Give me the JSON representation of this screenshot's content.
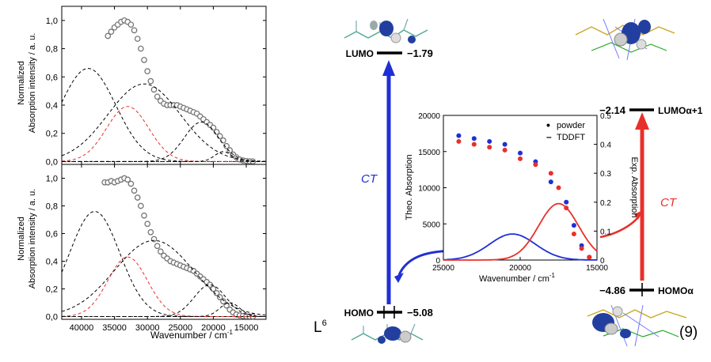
{
  "colors": {
    "blue": "#1f2fd6",
    "red": "#e8302a",
    "black": "#000000",
    "gray": "#777777"
  },
  "chart_data": [
    {
      "type": "line",
      "panel": "top",
      "ylabel_line1": "Normalized",
      "ylabel_line2": "Absorption intensity / a. u.",
      "xlim": [
        43000,
        12000
      ],
      "ylim": [
        -0.02,
        1.1
      ],
      "yticks": [
        "0,0",
        "0,2",
        "0,4",
        "0,6",
        "0,8",
        "1,0"
      ],
      "xticks": [
        "40000",
        "35000",
        "30000",
        "25000",
        "20000",
        "15000"
      ],
      "series": [
        {
          "style": "measured-circles",
          "color": "#777777",
          "x": [
            36000,
            35500,
            35000,
            34500,
            34000,
            33500,
            33000,
            32500,
            32000,
            31500,
            31000,
            30500,
            30000,
            29500,
            29000,
            28500,
            28000,
            27500,
            27000,
            26500,
            26000,
            25500,
            25000,
            24500,
            24000,
            23500,
            23000,
            22500,
            22000,
            21500,
            21000,
            20500,
            20000,
            19500,
            19000,
            18500,
            18000,
            17500,
            17000,
            16500,
            16000,
            15500,
            15000,
            14500,
            14000
          ],
          "y": [
            0.89,
            0.92,
            0.95,
            0.97,
            0.99,
            1.0,
            0.99,
            0.97,
            0.93,
            0.87,
            0.8,
            0.72,
            0.64,
            0.57,
            0.51,
            0.46,
            0.43,
            0.41,
            0.4,
            0.4,
            0.4,
            0.4,
            0.39,
            0.38,
            0.37,
            0.36,
            0.35,
            0.34,
            0.32,
            0.3,
            0.28,
            0.26,
            0.24,
            0.21,
            0.18,
            0.15,
            0.11,
            0.08,
            0.05,
            0.03,
            0.015,
            0.008,
            0.004,
            0.002,
            0.001
          ]
        },
        {
          "style": "gauss-black",
          "center": 39000,
          "amp": 0.66,
          "width": 4200
        },
        {
          "style": "gauss-black",
          "center": 30500,
          "amp": 0.55,
          "width": 5500
        },
        {
          "style": "gauss-red",
          "center": 33000,
          "amp": 0.39,
          "width": 3200
        },
        {
          "style": "gauss-black",
          "center": 21800,
          "amp": 0.28,
          "width": 2600
        },
        {
          "style": "gauss-black",
          "center": 18500,
          "amp": 0.07,
          "width": 1300
        }
      ]
    },
    {
      "type": "line",
      "panel": "bottom",
      "xlabel": "Wavenumber / cm",
      "xlabel_sup": "-1",
      "ylabel_line1": "Normalized",
      "ylabel_line2": "Absorption intensity / a. u.",
      "xlim": [
        43000,
        12000
      ],
      "ylim": [
        -0.02,
        1.1
      ],
      "yticks": [
        "0,0",
        "0,2",
        "0,4",
        "0,6",
        "0,8",
        "1,0"
      ],
      "xticks": [
        "40000",
        "35000",
        "30000",
        "25000",
        "20000",
        "15000"
      ],
      "series": [
        {
          "style": "measured-circles",
          "color": "#777777",
          "x": [
            36500,
            36000,
            35500,
            35000,
            34500,
            34000,
            33500,
            33000,
            32500,
            32000,
            31500,
            31000,
            30500,
            30000,
            29500,
            29000,
            28500,
            28000,
            27500,
            27000,
            26500,
            26000,
            25500,
            25000,
            24500,
            24000,
            23500,
            23000,
            22500,
            22000,
            21500,
            21000,
            20500,
            20000,
            19500,
            19000,
            18500,
            18000,
            17500,
            17000,
            16500,
            16000,
            15500,
            15000,
            14500,
            14000
          ],
          "y": [
            0.97,
            0.97,
            0.98,
            0.97,
            0.98,
            0.99,
            1.0,
            0.99,
            0.96,
            0.91,
            0.86,
            0.8,
            0.73,
            0.67,
            0.61,
            0.56,
            0.51,
            0.47,
            0.44,
            0.42,
            0.4,
            0.39,
            0.38,
            0.37,
            0.36,
            0.35,
            0.34,
            0.33,
            0.31,
            0.29,
            0.27,
            0.25,
            0.23,
            0.2,
            0.17,
            0.14,
            0.11,
            0.08,
            0.05,
            0.03,
            0.015,
            0.008,
            0.004,
            0.002,
            0.001,
            0.0
          ]
        },
        {
          "style": "gauss-black",
          "center": 38000,
          "amp": 0.76,
          "width": 3800
        },
        {
          "style": "gauss-black",
          "center": 29000,
          "amp": 0.55,
          "width": 6000
        },
        {
          "style": "gauss-red",
          "center": 33000,
          "amp": 0.43,
          "width": 3000
        },
        {
          "style": "gauss-black",
          "center": 20500,
          "amp": 0.23,
          "width": 2400
        },
        {
          "style": "gauss-black",
          "center": 17500,
          "amp": 0.1,
          "width": 1500
        }
      ]
    },
    {
      "type": "scatter",
      "panel": "inset",
      "xlabel": "Wavenumber / cm",
      "xlabel_sup": "-1",
      "ylabel_left": "Theo. Absorption",
      "ylabel_right": "Exp. Absorption",
      "xlim": [
        25000,
        15000
      ],
      "ylim_left": [
        0,
        20000
      ],
      "ylim_right": [
        0,
        0.5
      ],
      "xticks": [
        "25000",
        "20000",
        "15000"
      ],
      "yticks_left": [
        "0",
        "5000",
        "10000",
        "15000",
        "20000"
      ],
      "yticks_right": [
        "0",
        "0.1",
        "0.2",
        "0.3",
        "0.4",
        "0.5"
      ],
      "legend": [
        {
          "marker": "•",
          "label": "powder"
        },
        {
          "marker": "–",
          "label": "TDDFT"
        }
      ],
      "series": [
        {
          "style": "dots",
          "color": "#1f2fd6",
          "x": [
            24000,
            23000,
            22000,
            21000,
            20000,
            19000,
            18000,
            17000,
            16500,
            16000,
            15500
          ],
          "y": [
            0.43,
            0.42,
            0.41,
            0.4,
            0.37,
            0.34,
            0.27,
            0.2,
            0.12,
            0.05,
            0.01
          ]
        },
        {
          "style": "dots",
          "color": "#e8302a",
          "x": [
            24000,
            23000,
            22000,
            21000,
            20000,
            19000,
            18000,
            17500,
            17000,
            16500,
            16000,
            15500
          ],
          "y": [
            0.41,
            0.4,
            0.39,
            0.38,
            0.35,
            0.33,
            0.3,
            0.25,
            0.18,
            0.09,
            0.04,
            0.01
          ]
        },
        {
          "style": "gauss-theo",
          "color": "#1f2fd6",
          "center": 20500,
          "amp": 3600,
          "width": 1500
        },
        {
          "style": "gauss-theo",
          "color": "#e8302a",
          "center": 17500,
          "amp": 7800,
          "width": 1300
        }
      ]
    }
  ],
  "diagram": {
    "lumo_label": "LUMO",
    "lumo_value": "−1.79",
    "homo_label": "HOMO",
    "homo_value": "−5.08",
    "ct_left": "CT",
    "ct_right": "CT",
    "ligand": "L",
    "ligand_sup": "6",
    "lumo_a_value": "−2.14",
    "lumo_a_label": "LUMOα+1",
    "homo_a_value": "−4.86",
    "homo_a_label": "HOMOα",
    "compound": "(9)"
  }
}
